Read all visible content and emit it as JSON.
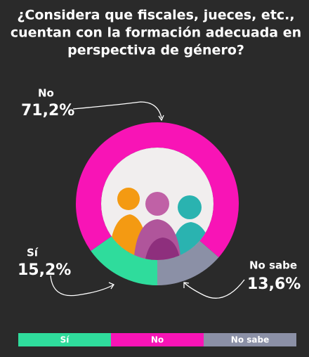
{
  "chart_data": {
    "type": "pie",
    "title": [
      "¿Considera que fiscales, jueces, etc.,",
      "cuentan con la formación adecuada en",
      "perspectiva de género?"
    ],
    "categories": [
      "Sí",
      "No",
      "No sabe"
    ],
    "values": [
      15.2,
      71.2,
      13.6
    ],
    "value_labels": [
      "15,2%",
      "71,2%",
      "13,6%"
    ],
    "colors": [
      "#2fdc9c",
      "#f814b6",
      "#8b90a6"
    ]
  }
}
